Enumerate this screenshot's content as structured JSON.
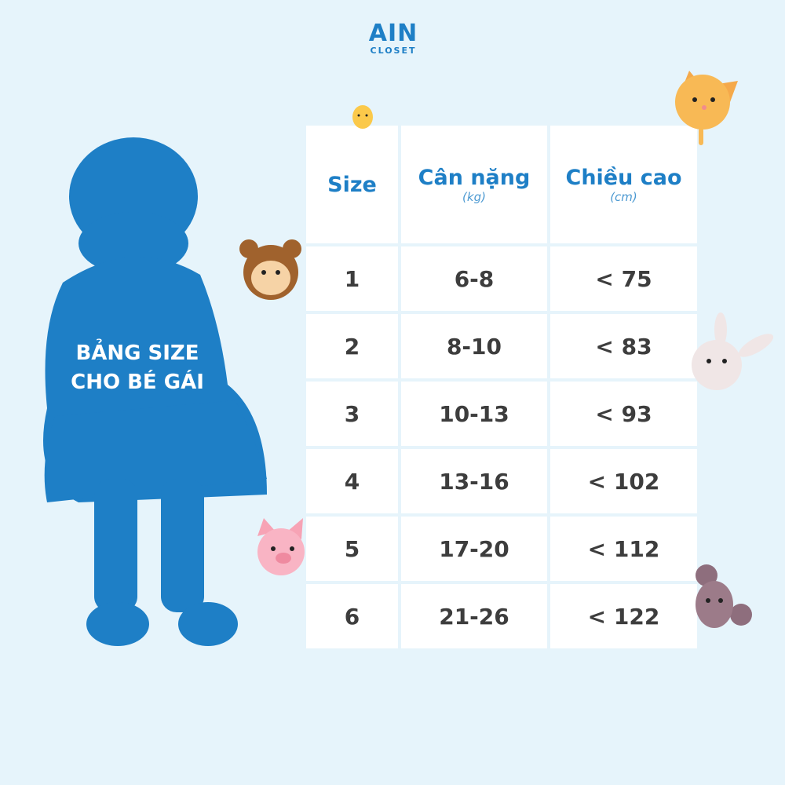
{
  "logo": {
    "line1": "AIN",
    "line2": "CLOSET"
  },
  "title": {
    "line1": "BẢNG SIZE",
    "line2": "CHO BÉ GÁI"
  },
  "colors": {
    "background": "#e6f4fb",
    "accent": "#1e7fc6",
    "text": "#3d3d3d"
  },
  "table": {
    "headers": [
      {
        "label": "Size",
        "unit": ""
      },
      {
        "label": "Cân nặng",
        "unit": "(kg)"
      },
      {
        "label": "Chiều cao",
        "unit": "(cm)"
      }
    ],
    "rows": [
      [
        "1",
        "6-8",
        "< 75"
      ],
      [
        "2",
        "8-10",
        "< 83"
      ],
      [
        "3",
        "10-13",
        "< 93"
      ],
      [
        "4",
        "13-16",
        "< 102"
      ],
      [
        "5",
        "17-20",
        "< 112"
      ],
      [
        "6",
        "21-26",
        "< 122"
      ]
    ]
  },
  "decorations": [
    "chick-icon",
    "cat-icon",
    "monkey-icon",
    "rabbit-icon",
    "pig-icon",
    "mouse-icon"
  ]
}
